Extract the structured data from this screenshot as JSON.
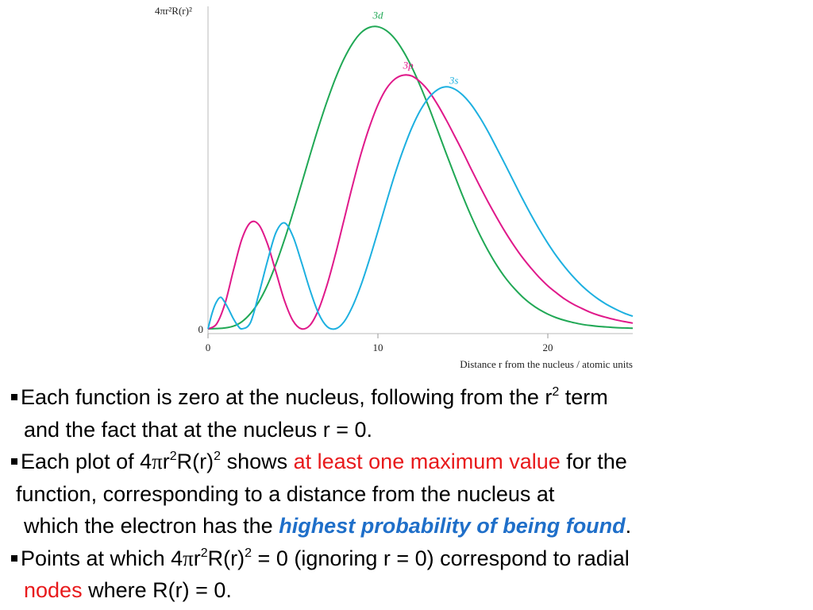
{
  "chart_data": {
    "type": "line",
    "ylabel": "4πr²R(r)²",
    "xlabel": "Distance r from the nucleus / atomic units",
    "xlim": [
      0,
      25
    ],
    "ylim": [
      0,
      1
    ],
    "x_ticks": [
      "0",
      "10",
      "20"
    ],
    "y_ticks": [
      "0"
    ],
    "grid": false,
    "legend": "labels-at-peaks",
    "series": [
      {
        "name": "3d",
        "color": "#20a855",
        "x": [
          0,
          0.5,
          1,
          1.5,
          2,
          2.5,
          3,
          3.5,
          4,
          4.5,
          5,
          5.5,
          6,
          6.5,
          7,
          7.5,
          8,
          8.5,
          9,
          9.5,
          10,
          10.5,
          11,
          11.5,
          12,
          12.5,
          13,
          13.5,
          14,
          14.5,
          15,
          15.5,
          16,
          16.5,
          17,
          17.5,
          18,
          18.5,
          19,
          19.5,
          20,
          20.5,
          21,
          21.5,
          22,
          22.5,
          23,
          23.5,
          24,
          24.5,
          25
        ],
        "y": [
          0,
          0.001,
          0.003,
          0.009,
          0.024,
          0.051,
          0.091,
          0.146,
          0.216,
          0.297,
          0.387,
          0.482,
          0.578,
          0.671,
          0.757,
          0.834,
          0.899,
          0.95,
          0.986,
          1.004,
          1.006,
          0.993,
          0.966,
          0.924,
          0.871,
          0.808,
          0.738,
          0.663,
          0.587,
          0.513,
          0.441,
          0.374,
          0.313,
          0.259,
          0.211,
          0.17,
          0.136,
          0.107,
          0.083,
          0.064,
          0.049,
          0.037,
          0.028,
          0.021,
          0.015,
          0.011,
          0.008,
          0.006,
          0.004,
          0.003,
          0.002
        ]
      },
      {
        "name": "3p",
        "color": "#e0198a",
        "x": [
          0,
          0.5,
          1,
          1.5,
          2,
          2.5,
          3,
          3.5,
          4,
          4.5,
          5,
          5.5,
          6,
          6.5,
          7,
          7.5,
          8,
          8.5,
          9,
          9.5,
          10,
          10.5,
          11,
          11.5,
          12,
          12.5,
          13,
          13.5,
          14,
          14.5,
          15,
          15.5,
          16,
          16.5,
          17,
          17.5,
          18,
          18.5,
          19,
          19.5,
          20,
          20.5,
          21,
          21.5,
          22,
          22.5,
          23,
          23.5,
          24,
          24.5,
          25
        ],
        "y": [
          0,
          0.016,
          0.084,
          0.196,
          0.3,
          0.354,
          0.346,
          0.283,
          0.189,
          0.094,
          0.027,
          0,
          0.012,
          0.063,
          0.145,
          0.248,
          0.362,
          0.476,
          0.582,
          0.672,
          0.746,
          0.8,
          0.832,
          0.845,
          0.842,
          0.822,
          0.791,
          0.748,
          0.698,
          0.644,
          0.589,
          0.531,
          0.475,
          0.421,
          0.37,
          0.322,
          0.278,
          0.238,
          0.203,
          0.171,
          0.143,
          0.12,
          0.099,
          0.082,
          0.068,
          0.055,
          0.045,
          0.037,
          0.03,
          0.024,
          0.019
        ]
      },
      {
        "name": "3s",
        "color": "#1db0e0",
        "x": [
          0,
          0.25,
          0.5,
          0.75,
          1,
          1.25,
          1.5,
          1.75,
          2,
          2.5,
          3,
          3.5,
          4,
          4.5,
          5,
          5.5,
          6,
          6.5,
          7,
          7.5,
          8,
          8.5,
          9,
          9.5,
          10,
          10.5,
          11,
          11.5,
          12,
          12.5,
          13,
          13.5,
          14,
          14.5,
          15,
          15.5,
          16,
          16.5,
          17,
          17.5,
          18,
          18.5,
          19,
          19.5,
          20,
          20.5,
          21,
          21.5,
          22,
          22.5,
          23,
          23.5,
          24,
          24.5,
          25
        ],
        "y": [
          0,
          0.054,
          0.09,
          0.105,
          0.087,
          0.061,
          0.033,
          0.011,
          0,
          0.021,
          0.118,
          0.226,
          0.321,
          0.353,
          0.308,
          0.222,
          0.13,
          0.052,
          0.008,
          0,
          0.023,
          0.074,
          0.145,
          0.231,
          0.325,
          0.422,
          0.515,
          0.598,
          0.67,
          0.728,
          0.77,
          0.796,
          0.806,
          0.799,
          0.778,
          0.746,
          0.704,
          0.655,
          0.601,
          0.546,
          0.49,
          0.434,
          0.381,
          0.331,
          0.285,
          0.243,
          0.206,
          0.173,
          0.144,
          0.119,
          0.098,
          0.08,
          0.065,
          0.052,
          0.042
        ]
      }
    ]
  },
  "notes": {
    "line1_text": "Each function is zero at the nucleus, following from the r",
    "line1_sup": "2",
    "line1_end": " term",
    "line2": "and the fact that at the nucleus r = 0.",
    "line3_pre": "Each plot of 4",
    "line3_pi": "π",
    "line3_r": "r",
    "line3_sup1": "2",
    "line3_R": "R(r)",
    "line3_sup2": "2",
    "line3_shows": " shows ",
    "line3_highlight": "at least one maximum value",
    "line3_end": " for the",
    "line4": "function, corresponding to a distance from the nucleus at",
    "line5_pre": "which the electron has the ",
    "line5_highlight": "highest probability of being found",
    "line5_end": ".",
    "line6_pre": "Points at which 4",
    "line6_pi": "π",
    "line6_r": "r",
    "line6_sup1": "2",
    "line6_R": "R(r)",
    "line6_sup2": "2",
    "line6_end": " = 0 (ignoring r = 0) correspond to radial",
    "line7_highlight": "nodes",
    "line7_end": " where R(r) = 0."
  }
}
